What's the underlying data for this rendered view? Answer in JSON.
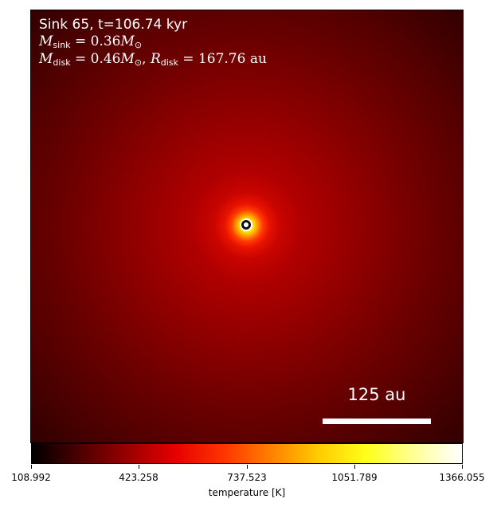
{
  "info": {
    "sink_line": "Sink 65, t=106.74 kyr",
    "msink": {
      "symbol": "M",
      "sub": "sink",
      "eq": " = ",
      "value": "0.36",
      "unit_symbol": "M",
      "unit_sub": "⊙"
    },
    "mdisk": {
      "symbol": "M",
      "sub": "disk",
      "eq": " = ",
      "value": "0.46",
      "unit_symbol": "M",
      "unit_sub": "⊙",
      "sep": ", ",
      "r_symbol": "R",
      "r_sub": "disk",
      "r_eq": " = ",
      "r_value": "167.76",
      "r_unit": " au"
    }
  },
  "scale_bar": {
    "label": "125 au"
  },
  "colorbar": {
    "colormap": "hot",
    "label": "temperature [K]",
    "ticks": [
      "108.992",
      "423.258",
      "737.523",
      "1051.789",
      "1366.055"
    ],
    "min": 108.992,
    "max": 1366.055
  },
  "colors": {
    "cmap_stops": [
      "#000000",
      "#4d0000",
      "#990000",
      "#e60000",
      "#ff3300",
      "#ff8000",
      "#ffcc00",
      "#ffff1a",
      "#ffff99",
      "#ffffff"
    ]
  }
}
